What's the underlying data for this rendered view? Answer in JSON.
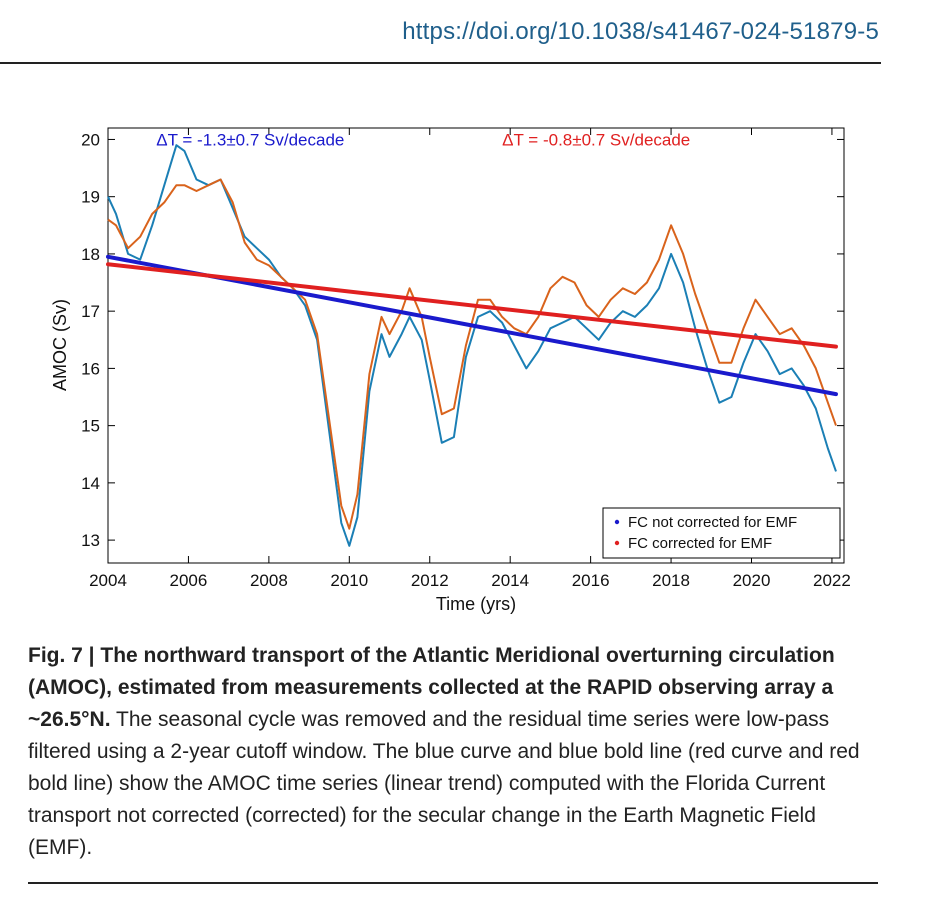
{
  "header": {
    "doi": "https://doi.org/10.1038/s41467-024-51879-5"
  },
  "caption": {
    "fig_label": "Fig. 7",
    "separator": " | ",
    "bold_title": "The northward transport of the Atlantic Meridional overturning circulation (AMOC), estimated from measurements collected at the RAPID observing array a ~26.5°N.",
    "body": " The seasonal cycle was removed and the residual time series were low-pass filtered using a 2-year cutoff window. The blue curve and blue bold line (red curve and red bold line) show the AMOC time series (linear trend) computed with the Florida Current transport not corrected (corrected) for the secular change in the Earth Magnetic Field (EMF)."
  },
  "chart_data": {
    "type": "line",
    "xlabel": "Time (yrs)",
    "ylabel": "AMOC (Sv)",
    "xlim": [
      2004,
      2022.3
    ],
    "ylim": [
      12.6,
      20.2
    ],
    "xticks": [
      2004,
      2006,
      2008,
      2010,
      2012,
      2014,
      2016,
      2018,
      2020,
      2022
    ],
    "yticks": [
      13,
      14,
      15,
      16,
      17,
      18,
      19,
      20
    ],
    "grid": false,
    "legend_position": "bottom-right",
    "annotations": [
      {
        "text": "ΔT = -1.3±0.7 Sv/decade",
        "color": "#1a1acc",
        "x": 2005.2,
        "y": 20.0
      },
      {
        "text": "ΔT = -0.8±0.7 Sv/decade",
        "color": "#e02020",
        "x": 2013.8,
        "y": 20.0
      }
    ],
    "series": [
      {
        "name": "FC not corrected for EMF",
        "color": "#1b7fb5",
        "legend_color": "#1a1acc",
        "x": [
          2004.0,
          2004.2,
          2004.5,
          2004.8,
          2005.1,
          2005.4,
          2005.7,
          2005.9,
          2006.2,
          2006.5,
          2006.8,
          2007.1,
          2007.4,
          2007.7,
          2008.0,
          2008.3,
          2008.6,
          2008.9,
          2009.2,
          2009.5,
          2009.8,
          2010.0,
          2010.2,
          2010.5,
          2010.8,
          2011.0,
          2011.3,
          2011.5,
          2011.8,
          2012.0,
          2012.3,
          2012.6,
          2012.9,
          2013.2,
          2013.5,
          2013.8,
          2014.1,
          2014.4,
          2014.7,
          2015.0,
          2015.3,
          2015.6,
          2015.9,
          2016.2,
          2016.5,
          2016.8,
          2017.1,
          2017.4,
          2017.7,
          2018.0,
          2018.3,
          2018.6,
          2018.9,
          2019.2,
          2019.5,
          2019.8,
          2020.1,
          2020.4,
          2020.7,
          2021.0,
          2021.3,
          2021.6,
          2021.9,
          2022.1
        ],
        "y": [
          19.0,
          18.7,
          18.0,
          17.9,
          18.5,
          19.2,
          19.9,
          19.8,
          19.3,
          19.2,
          19.3,
          18.8,
          18.3,
          18.1,
          17.9,
          17.6,
          17.4,
          17.1,
          16.5,
          14.9,
          13.3,
          12.9,
          13.4,
          15.6,
          16.6,
          16.2,
          16.6,
          16.9,
          16.5,
          15.8,
          14.7,
          14.8,
          16.2,
          16.9,
          17.0,
          16.8,
          16.4,
          16.0,
          16.3,
          16.7,
          16.8,
          16.9,
          16.7,
          16.5,
          16.8,
          17.0,
          16.9,
          17.1,
          17.4,
          18.0,
          17.5,
          16.7,
          16.0,
          15.4,
          15.5,
          16.1,
          16.6,
          16.3,
          15.9,
          16.0,
          15.7,
          15.3,
          14.6,
          14.2
        ]
      },
      {
        "name": "FC corrected for EMF",
        "color": "#d9631c",
        "legend_color": "#e02020",
        "x": [
          2004.0,
          2004.2,
          2004.5,
          2004.8,
          2005.1,
          2005.4,
          2005.7,
          2005.9,
          2006.2,
          2006.5,
          2006.8,
          2007.1,
          2007.4,
          2007.7,
          2008.0,
          2008.3,
          2008.6,
          2008.9,
          2009.2,
          2009.5,
          2009.8,
          2010.0,
          2010.2,
          2010.5,
          2010.8,
          2011.0,
          2011.3,
          2011.5,
          2011.8,
          2012.0,
          2012.3,
          2012.6,
          2012.9,
          2013.2,
          2013.5,
          2013.8,
          2014.1,
          2014.4,
          2014.7,
          2015.0,
          2015.3,
          2015.6,
          2015.9,
          2016.2,
          2016.5,
          2016.8,
          2017.1,
          2017.4,
          2017.7,
          2018.0,
          2018.3,
          2018.6,
          2018.9,
          2019.2,
          2019.5,
          2019.8,
          2020.1,
          2020.4,
          2020.7,
          2021.0,
          2021.3,
          2021.6,
          2021.9,
          2022.1
        ],
        "y": [
          18.6,
          18.5,
          18.1,
          18.3,
          18.7,
          18.9,
          19.2,
          19.2,
          19.1,
          19.2,
          19.3,
          18.9,
          18.2,
          17.9,
          17.8,
          17.6,
          17.4,
          17.2,
          16.6,
          15.1,
          13.6,
          13.2,
          13.8,
          15.9,
          16.9,
          16.6,
          17.0,
          17.4,
          16.9,
          16.2,
          15.2,
          15.3,
          16.4,
          17.2,
          17.2,
          16.9,
          16.7,
          16.6,
          16.9,
          17.4,
          17.6,
          17.5,
          17.1,
          16.9,
          17.2,
          17.4,
          17.3,
          17.5,
          17.9,
          18.5,
          18.0,
          17.3,
          16.7,
          16.1,
          16.1,
          16.7,
          17.2,
          16.9,
          16.6,
          16.7,
          16.4,
          16.0,
          15.4,
          15.0
        ]
      }
    ],
    "trend_lines": [
      {
        "color": "#1a1acc",
        "x": [
          2004.0,
          2022.1
        ],
        "y": [
          17.95,
          15.55
        ]
      },
      {
        "color": "#e02020",
        "x": [
          2004.0,
          2022.1
        ],
        "y": [
          17.82,
          16.38
        ]
      }
    ]
  }
}
